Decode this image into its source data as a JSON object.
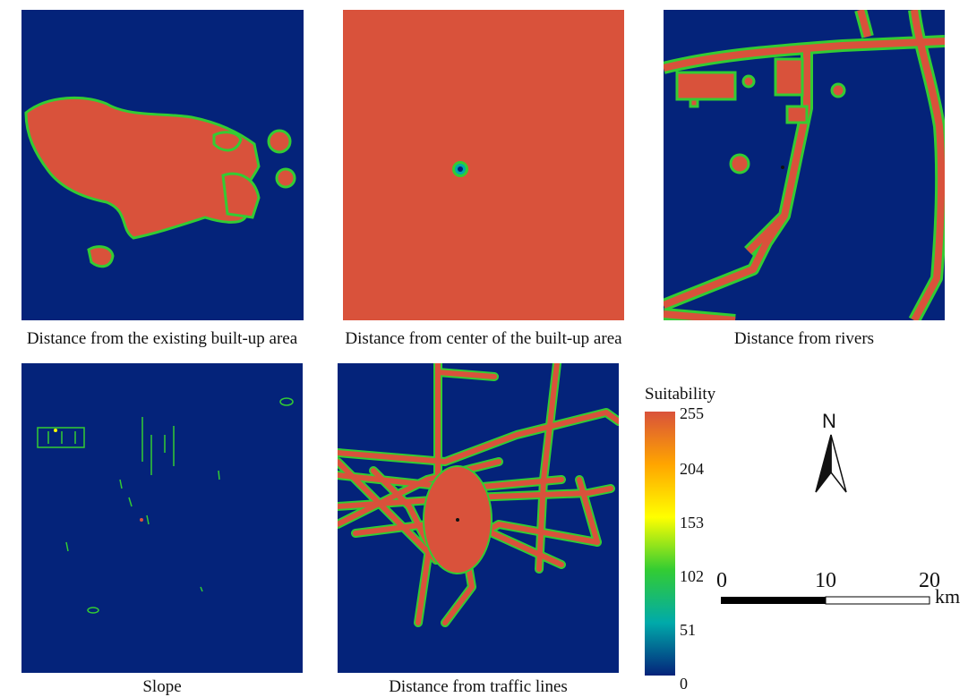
{
  "panels": [
    {
      "id": "built-up",
      "caption": "Distance from the existing built-up area"
    },
    {
      "id": "center",
      "caption": "Distance from center of the built-up area"
    },
    {
      "id": "rivers",
      "caption": "Distance from rivers"
    },
    {
      "id": "slope",
      "caption": "Slope"
    },
    {
      "id": "traffic",
      "caption": "Distance from traffic lines"
    }
  ],
  "legend": {
    "title": "Suitability",
    "ticks": [
      "255",
      "204",
      "153",
      "102",
      "51",
      "0"
    ],
    "colors": {
      "high": "#d9523b",
      "mid_high": "#ffa500",
      "mid": "#ffff00",
      "mid_low": "#33cc33",
      "low_mid": "#00aaaa",
      "low": "#04237a"
    }
  },
  "scale_bar": {
    "labels": [
      "0",
      "10",
      "20"
    ],
    "unit": "km"
  },
  "north_arrow": {
    "label": "N"
  }
}
